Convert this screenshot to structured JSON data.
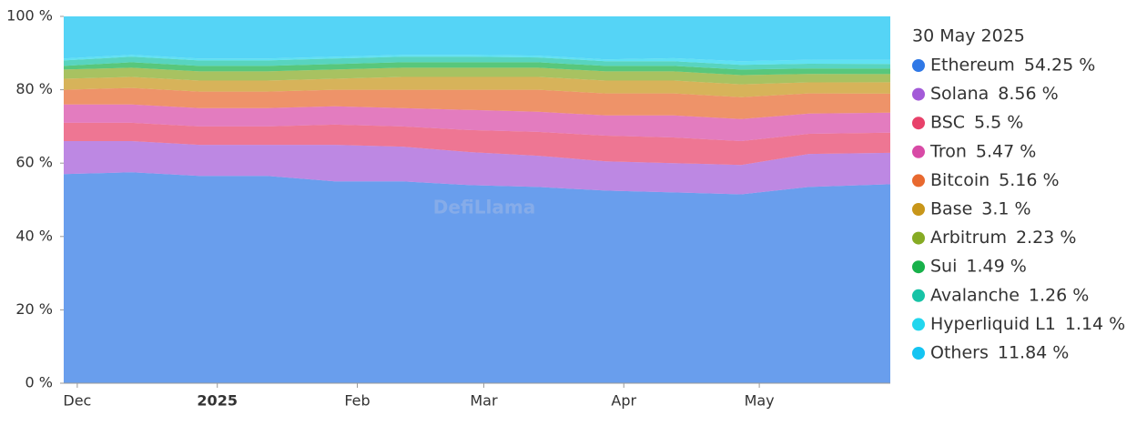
{
  "chart_data": {
    "type": "stacked-area-percent",
    "legend_title": "30 May 2025",
    "watermark": "DefiLlama",
    "x": [
      0,
      15,
      30,
      45,
      60,
      75,
      90,
      105,
      120,
      135,
      150,
      165,
      183
    ],
    "xlim": [
      0,
      183
    ],
    "xticks": [
      {
        "value": 3,
        "label": "Dec"
      },
      {
        "value": 34,
        "label": "2025"
      },
      {
        "value": 65,
        "label": "Feb"
      },
      {
        "value": 93,
        "label": "Mar"
      },
      {
        "value": 124,
        "label": "Apr"
      },
      {
        "value": 154,
        "label": "May"
      }
    ],
    "ylim": [
      0,
      100
    ],
    "yticks": [
      {
        "value": 0,
        "label": "0 %"
      },
      {
        "value": 20,
        "label": "20 %"
      },
      {
        "value": 40,
        "label": "40 %"
      },
      {
        "value": 60,
        "label": "60 %"
      },
      {
        "value": 80,
        "label": "80 %"
      },
      {
        "value": 100,
        "label": "100 %"
      }
    ],
    "series": [
      {
        "name": "Ethereum",
        "color": "#2f78e6",
        "legend_label": "54.25 %",
        "values": [
          57,
          57.5,
          56.5,
          56.5,
          55,
          55,
          54,
          53.5,
          52.5,
          52,
          51.5,
          53.5,
          54.25
        ]
      },
      {
        "name": "Solana",
        "color": "#a35ad8",
        "legend_label": "8.56 %",
        "values": [
          9,
          8.5,
          8.5,
          8.5,
          10,
          9.5,
          9,
          8.5,
          8,
          8,
          8,
          9,
          8.56
        ]
      },
      {
        "name": "BSC",
        "color": "#e8416a",
        "legend_label": "5.5 %",
        "values": [
          5,
          5,
          5,
          5,
          5.5,
          5.5,
          6,
          6.5,
          7,
          7,
          6.5,
          5.5,
          5.5
        ]
      },
      {
        "name": "Tron",
        "color": "#d84aa6",
        "legend_label": "5.47 %",
        "values": [
          5,
          5,
          5,
          5,
          5,
          5,
          5.5,
          5.5,
          5.5,
          6,
          6,
          5.5,
          5.47
        ]
      },
      {
        "name": "Bitcoin",
        "color": "#e8692f",
        "legend_label": "5.16 %",
        "values": [
          4,
          4.5,
          4.5,
          4.5,
          4.5,
          5,
          5.5,
          6,
          6,
          6,
          6,
          5.5,
          5.16
        ]
      },
      {
        "name": "Base",
        "color": "#c8961a",
        "legend_label": "3.1 %",
        "values": [
          3,
          3,
          3,
          3,
          3,
          3.5,
          3.5,
          3.5,
          3.5,
          3.5,
          3.5,
          3,
          3.1
        ]
      },
      {
        "name": "Arbitrum",
        "color": "#86ab24",
        "legend_label": "2.23 %",
        "values": [
          2.5,
          2.5,
          2.5,
          2.5,
          2.5,
          2.5,
          2.5,
          2.5,
          2.5,
          2.5,
          2.5,
          2.3,
          2.23
        ]
      },
      {
        "name": "Sui",
        "color": "#18b14a",
        "legend_label": "1.49 %",
        "values": [
          1,
          1.5,
          1.5,
          1.5,
          1.5,
          1.5,
          1.5,
          1.5,
          1.5,
          1.5,
          1.5,
          1.5,
          1.49
        ]
      },
      {
        "name": "Avalanche",
        "color": "#17c3a6",
        "legend_label": "1.26 %",
        "values": [
          1.5,
          1.5,
          1.5,
          1.5,
          1.5,
          1.5,
          1.5,
          1.3,
          1.3,
          1.3,
          1.3,
          1.3,
          1.26
        ]
      },
      {
        "name": "Hyperliquid L1",
        "color": "#22d6ee",
        "legend_label": "1.14 %",
        "values": [
          0.5,
          0.5,
          0.5,
          0.5,
          0.5,
          0.5,
          0.5,
          0.5,
          0.5,
          0.8,
          1,
          1.1,
          1.14
        ]
      },
      {
        "name": "Others",
        "color": "#14c4f2",
        "legend_label": "11.84 %",
        "values": [
          11.5,
          10.5,
          11.5,
          11.5,
          11,
          10.5,
          10.5,
          10.7,
          11.7,
          11.4,
          12.2,
          11.8,
          11.84
        ]
      }
    ]
  }
}
